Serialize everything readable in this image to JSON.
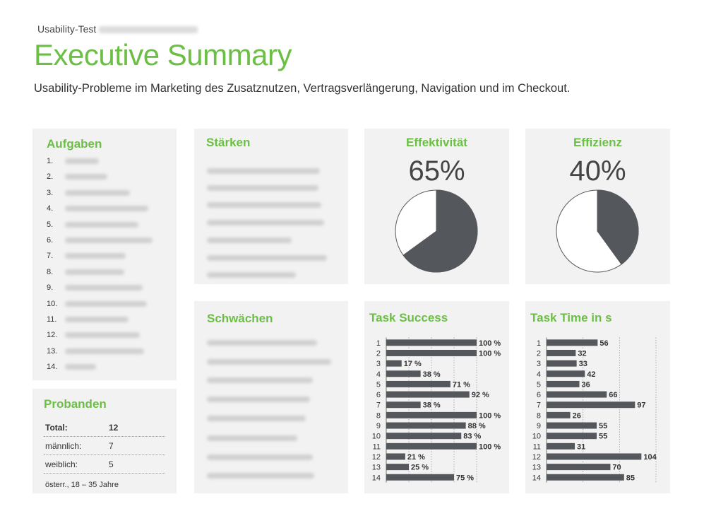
{
  "header": {
    "label": "Usability-Test",
    "title": "Executive Summary",
    "subtitle": "Usability-Probleme im Marketing des Zusatznutzen, Vertragsverlängerung, Navigation und im Checkout."
  },
  "aufgaben": {
    "title": "Aufgaben",
    "numbers": [
      "1.",
      "2.",
      "3.",
      "4.",
      "5.",
      "6.",
      "7.",
      "8.",
      "9.",
      "10.",
      "11.",
      "12.",
      "13.",
      "14."
    ]
  },
  "staerken": {
    "title": "Stärken"
  },
  "schwaechen": {
    "title": "Schwächen"
  },
  "effektivitaet": {
    "title": "Effektivität",
    "percent_label": "65%",
    "value": 65
  },
  "effizienz": {
    "title": "Effizienz",
    "percent_label": "40%",
    "value": 40
  },
  "probanden": {
    "title": "Probanden",
    "rows": [
      {
        "label": "Total:",
        "value": "12"
      },
      {
        "label": "männlich:",
        "value": "7"
      },
      {
        "label": "weiblich:",
        "value": "5"
      }
    ],
    "note": "österr., 18 – 35 Jahre"
  },
  "colors": {
    "accent": "#6cbf45",
    "bar": "#54575c",
    "panel": "#f2f2f2"
  },
  "chart_data": [
    {
      "type": "bar",
      "title": "Task Success",
      "orientation": "horizontal",
      "categories": [
        "1",
        "2",
        "3",
        "4",
        "5",
        "6",
        "7",
        "8",
        "9",
        "10",
        "11",
        "12",
        "13",
        "14"
      ],
      "values": [
        100,
        100,
        17,
        38,
        71,
        92,
        38,
        100,
        88,
        83,
        100,
        21,
        25,
        75
      ],
      "data_labels": [
        "100 %",
        "100 %",
        "17 %",
        "38 %",
        "71 %",
        "92 %",
        "38 %",
        "100 %",
        "88 %",
        "83 %",
        "100 %",
        "21 %",
        "25 %",
        "75 %"
      ],
      "xlim": [
        0,
        100
      ],
      "grid": "vertical dotted"
    },
    {
      "type": "bar",
      "title": "Task Time in s",
      "orientation": "horizontal",
      "categories": [
        "1",
        "2",
        "3",
        "4",
        "5",
        "6",
        "7",
        "8",
        "9",
        "10",
        "11",
        "12",
        "13",
        "14"
      ],
      "values": [
        56,
        32,
        33,
        42,
        36,
        66,
        97,
        26,
        55,
        55,
        31,
        104,
        70,
        85
      ],
      "data_labels": [
        "56",
        "32",
        "33",
        "42",
        "36",
        "66",
        "97",
        "26",
        "55",
        "55",
        "31",
        "104",
        "70",
        "85"
      ],
      "xlim": [
        0,
        120
      ],
      "grid": "vertical dotted"
    }
  ]
}
